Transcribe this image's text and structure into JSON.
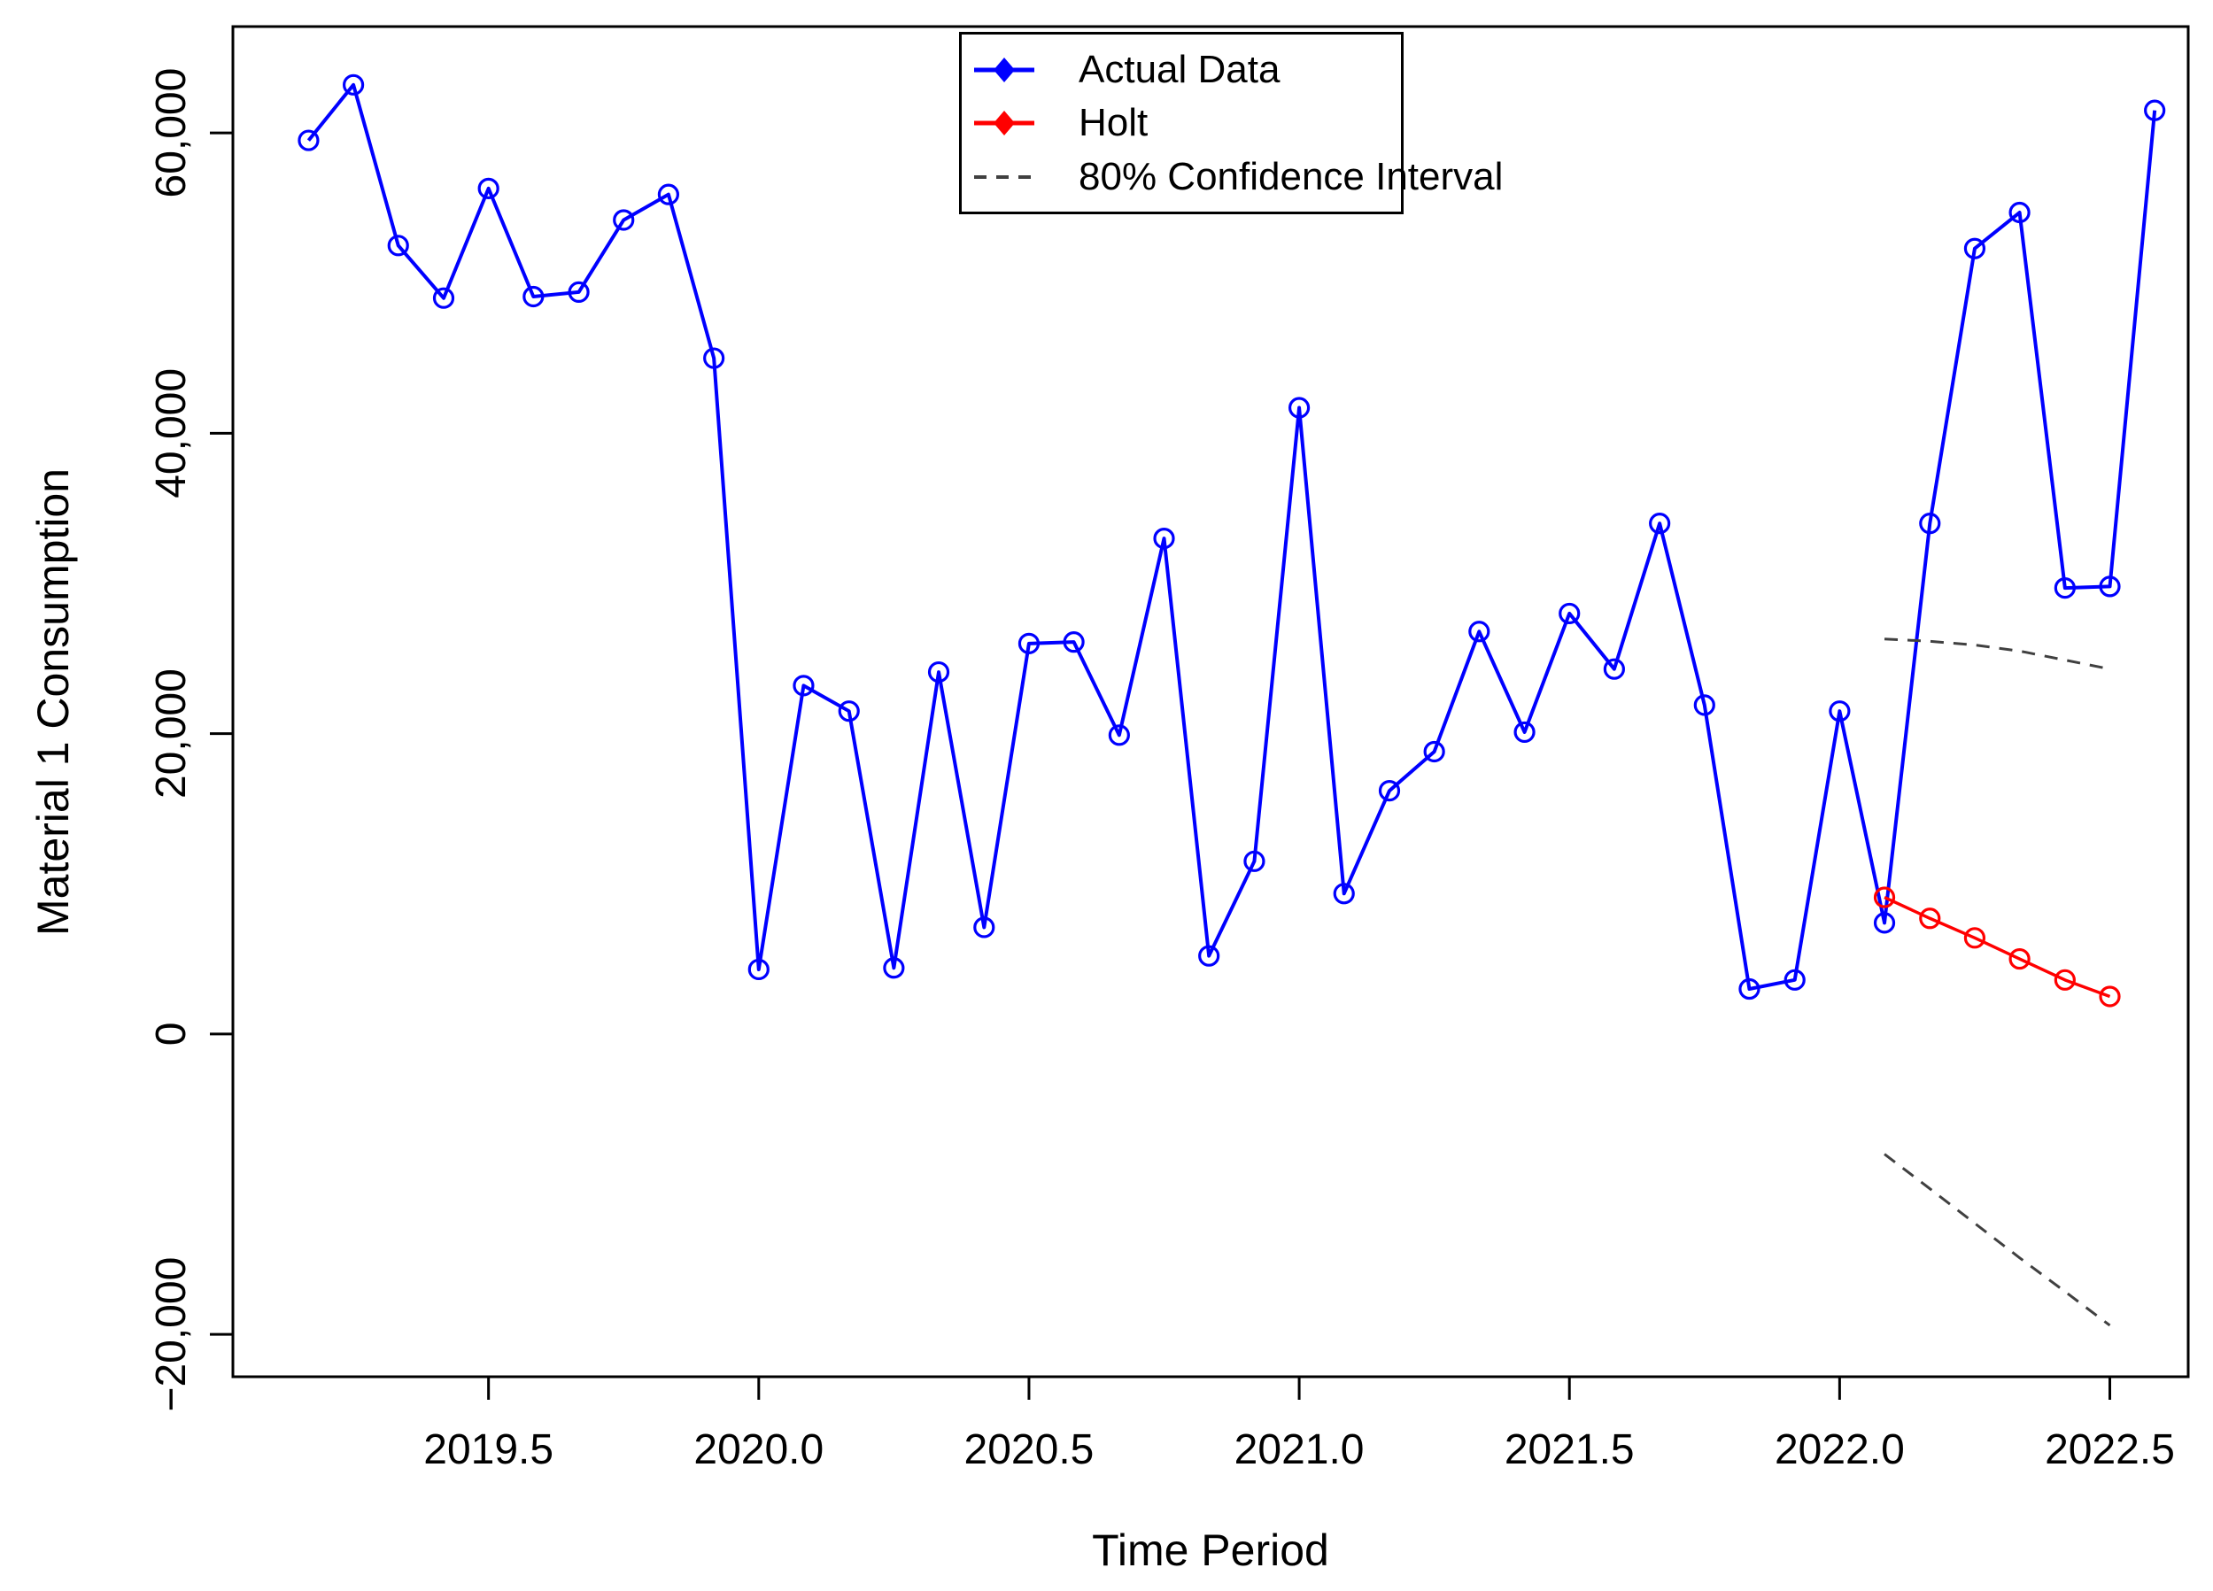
{
  "figure": {
    "background": "#ffffff",
    "axis_color": "#000000"
  },
  "legend": {
    "entries": [
      {
        "label": "Actual Data",
        "color": "#0000ff",
        "dash": "solid",
        "marker": "diamond-filled"
      },
      {
        "label": "Holt",
        "color": "#ff0000",
        "dash": "solid",
        "marker": "diamond-filled"
      },
      {
        "label": "80% Confidence Interval",
        "color": "#404040",
        "dash": "dashed",
        "marker": "none"
      }
    ]
  },
  "chart_data": {
    "type": "line",
    "title": "",
    "xlabel": "Time Period",
    "ylabel": "Material 1 Consumption",
    "xlim": [
      2019.027,
      2022.645
    ],
    "ylim": [
      -22820,
      67080
    ],
    "grid": false,
    "legend_position": "top-center",
    "xticks": {
      "values": [
        2019.5,
        2020.0,
        2020.5,
        2021.0,
        2021.5,
        2022.0,
        2022.5
      ],
      "labels": [
        "2019.5",
        "2020.0",
        "2020.5",
        "2021.0",
        "2021.5",
        "2022.0",
        "2022.5"
      ]
    },
    "yticks": {
      "values": [
        -20000,
        0,
        20000,
        40000,
        60000
      ],
      "labels": [
        "−20,000",
        "0",
        "20,000",
        "40,000",
        "60,000"
      ]
    },
    "series": [
      {
        "name": "Actual Data",
        "color": "#0000ff",
        "style": "solid",
        "marker": "circle-open",
        "line_width": 4,
        "x": [
          2019.167,
          2019.25,
          2019.333,
          2019.417,
          2019.5,
          2019.583,
          2019.667,
          2019.75,
          2019.833,
          2019.917,
          2020.0,
          2020.083,
          2020.167,
          2020.25,
          2020.333,
          2020.417,
          2020.5,
          2020.583,
          2020.667,
          2020.75,
          2020.833,
          2020.917,
          2021.0,
          2021.083,
          2021.167,
          2021.25,
          2021.333,
          2021.417,
          2021.5,
          2021.583,
          2021.667,
          2021.75,
          2021.833,
          2021.917,
          2022.0,
          2022.083,
          2022.167,
          2022.25,
          2022.333,
          2022.417,
          2022.5,
          2022.583
        ],
        "y": [
          59500,
          63200,
          52500,
          49000,
          56300,
          49100,
          49400,
          54200,
          55900,
          45000,
          4300,
          23200,
          21500,
          4400,
          24100,
          7100,
          26000,
          26100,
          19900,
          33000,
          5200,
          11500,
          41700,
          9350,
          16200,
          18800,
          26800,
          20100,
          28000,
          24300,
          34000,
          21900,
          3000,
          3600,
          21500,
          7400,
          34000,
          52300,
          54700,
          29700,
          29800,
          61500
        ]
      },
      {
        "name": "Holt",
        "color": "#ff0000",
        "style": "solid",
        "marker": "circle-open",
        "line_width": 3.5,
        "x": [
          2022.083,
          2022.167,
          2022.25,
          2022.333,
          2022.417,
          2022.5
        ],
        "y": [
          9100,
          7700,
          6400,
          5000,
          3600,
          2500
        ]
      },
      {
        "name": "80% Confidence Interval (upper)",
        "color": "#404040",
        "style": "dashed",
        "marker": "none",
        "line_width": 3,
        "x": [
          2022.083,
          2022.167,
          2022.25,
          2022.333,
          2022.417,
          2022.5
        ],
        "y": [
          26300,
          26150,
          25900,
          25500,
          24900,
          24300
        ]
      },
      {
        "name": "80% Confidence Interval (lower)",
        "color": "#404040",
        "style": "dashed",
        "marker": "none",
        "x": [
          2022.083,
          2022.167,
          2022.25,
          2022.333,
          2022.417,
          2022.5
        ],
        "line_width": 3,
        "y": [
          -8000,
          -10300,
          -12600,
          -14900,
          -17150,
          -19400
        ]
      }
    ]
  }
}
